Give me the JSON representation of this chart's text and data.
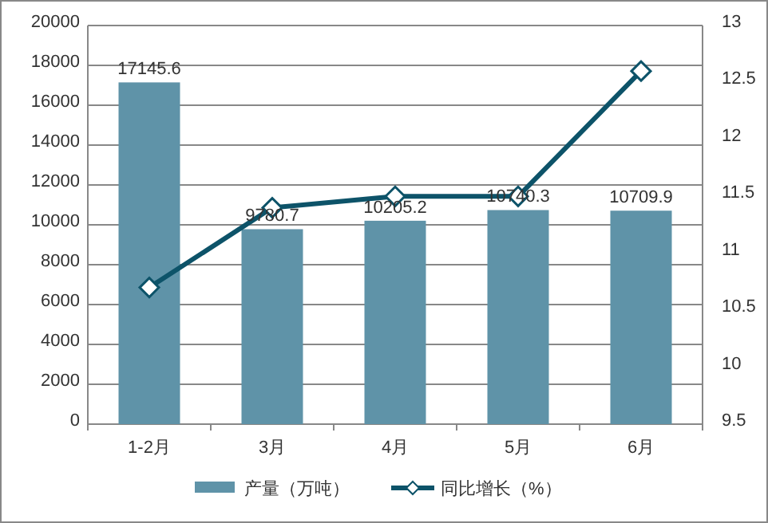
{
  "chart_data": {
    "type": "bar",
    "categories": [
      "1-2月",
      "3月",
      "4月",
      "5月",
      "6月"
    ],
    "series": [
      {
        "name": "产量（万吨）",
        "color": "#5f93a8",
        "values": [
          17145.6,
          9780.7,
          10205.2,
          10740.3,
          10709.9
        ],
        "value_labels": [
          "17145.6",
          "9780.7",
          "10205.2",
          "10740.3",
          "10709.9"
        ]
      },
      {
        "name": "同比增长（%）",
        "type": "line",
        "axis": "y2",
        "color": "#0d5369",
        "marker": "diamond",
        "values": [
          10.7,
          11.4,
          11.5,
          11.5,
          12.6
        ]
      }
    ],
    "ylim": [
      0,
      20000
    ],
    "yticks": [
      0,
      2000,
      4000,
      6000,
      8000,
      10000,
      12000,
      14000,
      16000,
      18000,
      20000
    ],
    "y2lim": [
      9.5,
      13
    ],
    "y2ticks": [
      9.5,
      10,
      10.5,
      11,
      11.5,
      12,
      12.5,
      13
    ],
    "grid": "y",
    "legend": "bottom"
  }
}
